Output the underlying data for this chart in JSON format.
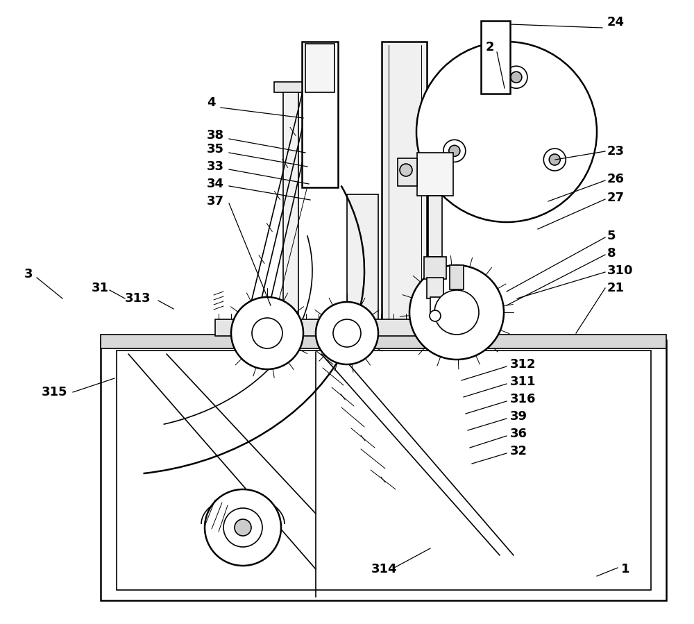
{
  "bg_color": "#ffffff",
  "line_color": "#000000",
  "lw_thin": 0.7,
  "lw_med": 1.2,
  "lw_thick": 1.8,
  "fig_width": 10.0,
  "fig_height": 8.99
}
